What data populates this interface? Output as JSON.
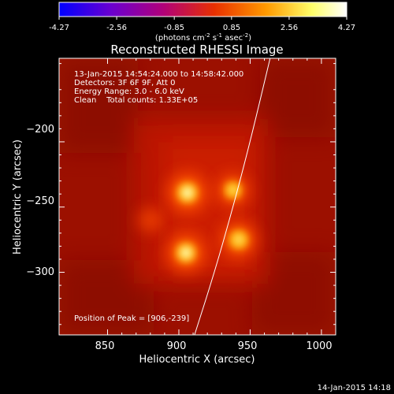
{
  "colorbar": {
    "ticks": [
      "-4.27",
      "-2.56",
      "-0.85",
      "0.85",
      "2.56",
      "4.27"
    ],
    "tick_values": [
      -4.27,
      -2.56,
      -0.85,
      0.85,
      2.56,
      4.27
    ],
    "range": [
      -4.27,
      4.27
    ],
    "units_main": "(photons cm",
    "units_exp1": "-2",
    "units_mid": " s",
    "units_exp2": "-1",
    "units_mid2": " asec",
    "units_exp3": "-2",
    "units_close": ")",
    "colors": [
      "#0000ff",
      "#6a00d0",
      "#b0007a",
      "#e83000",
      "#ff9a00",
      "#ffff6a",
      "#ffffff"
    ]
  },
  "chart_data": {
    "type": "heatmap",
    "title": "Reconstructed RHESSI Image",
    "xlabel": "Heliocentric X (arcsec)",
    "ylabel": "Heliocentric Y (arcsec)",
    "xlim": [
      816,
      1010
    ],
    "ylim": [
      -348,
      -136
    ],
    "x_ticks": [
      850,
      900,
      950,
      1000
    ],
    "y_ticks": [
      -200,
      -250,
      -300
    ],
    "x_tick_labels": [
      "850",
      "900",
      "950",
      "1000"
    ],
    "y_tick_labels": [
      "−200",
      "−250",
      "−300"
    ],
    "sources": [
      {
        "x": 906,
        "y": -239,
        "relative_intensity": 1.0
      },
      {
        "x": 905,
        "y": -285,
        "relative_intensity": 0.95
      },
      {
        "x": 942,
        "y": -275,
        "relative_intensity": 0.85
      },
      {
        "x": 938,
        "y": -237,
        "relative_intensity": 0.7
      },
      {
        "x": 880,
        "y": -260,
        "relative_intensity": 0.35
      }
    ],
    "limb_curve": [
      [
        911,
        -348
      ],
      [
        925,
        -300
      ],
      [
        938,
        -250
      ],
      [
        950,
        -200
      ],
      [
        964,
        -136
      ]
    ],
    "annotations": {
      "time": "13-Jan-2015 14:54:24.000 to 14:58:42.000",
      "detectors": "Detectors: 3F 6F 9F, Att 0",
      "energy": "Energy Range: 3.0 - 6.0 keV",
      "clean": "Clean    Total counts: 1.33E+05",
      "peak": "Position of Peak = [906,-239]"
    }
  },
  "footer": {
    "timestamp": "14-Jan-2015 14:18"
  }
}
